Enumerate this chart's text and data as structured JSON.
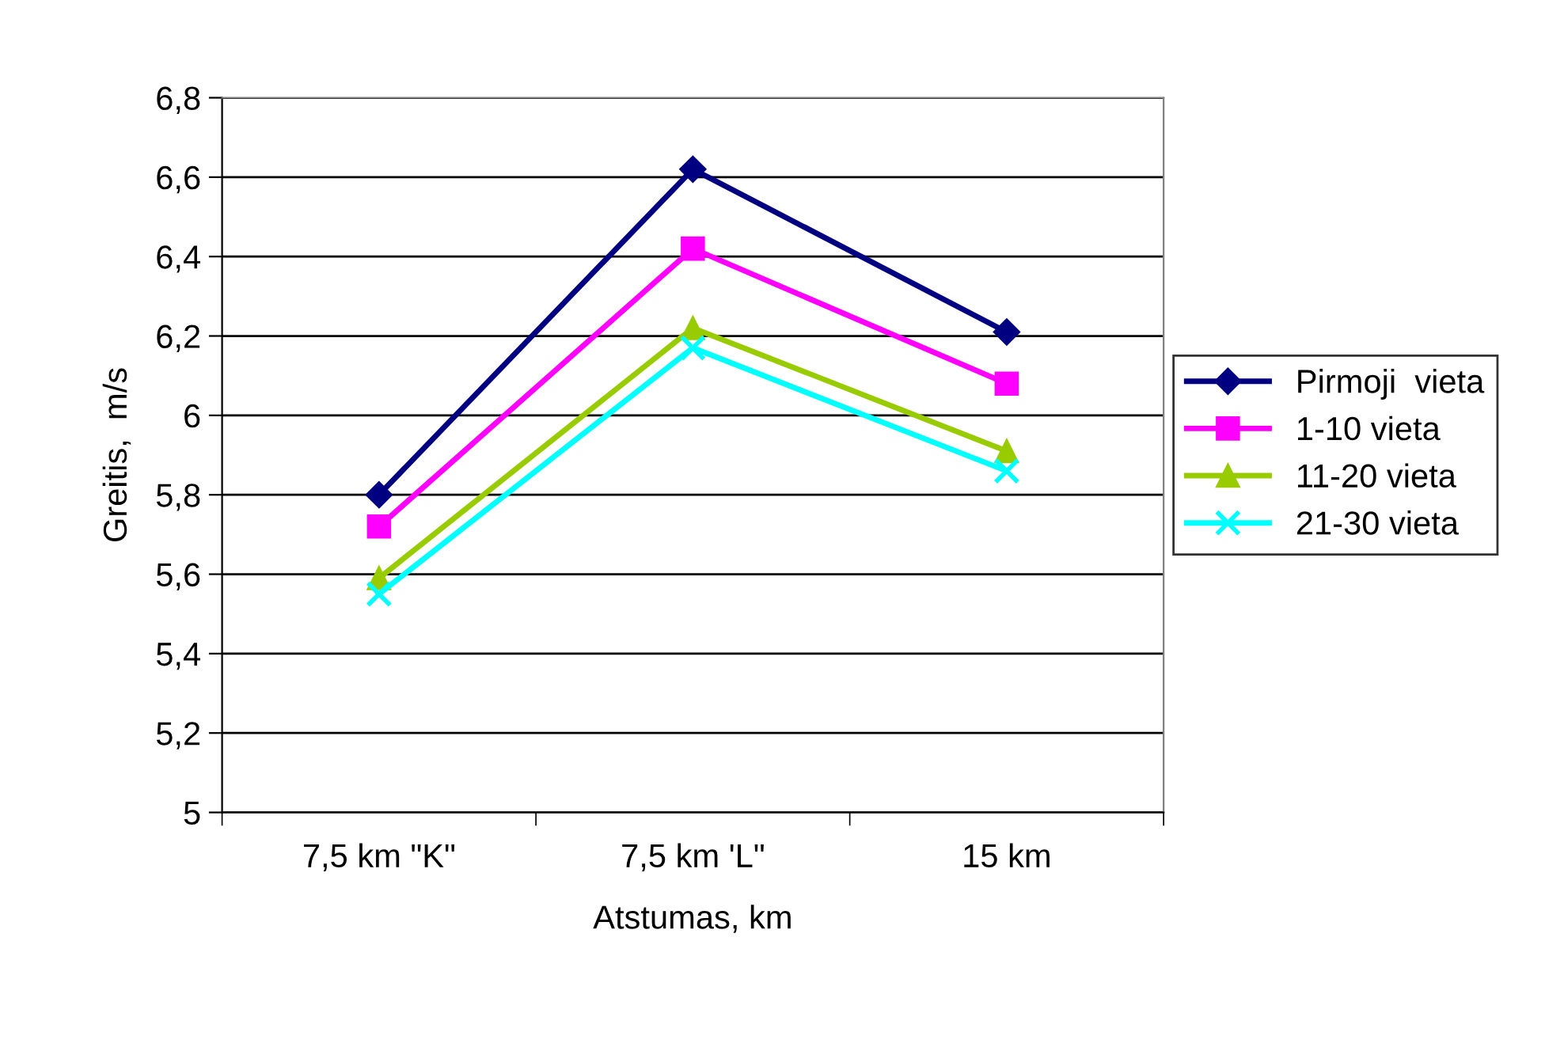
{
  "chart_data": {
    "type": "line",
    "xlabel": "Atstumas, km",
    "ylabel": "Greitis,  m/s",
    "categories": [
      "7,5 km \"K\"",
      "7,5 km 'L\"",
      "15 km"
    ],
    "series": [
      {
        "name": "Pirmoji  vieta",
        "color": "#000080",
        "marker": "diamond",
        "values": [
          5.8,
          6.62,
          6.21
        ]
      },
      {
        "name": "1-10 vieta",
        "color": "#ff00ff",
        "marker": "square",
        "values": [
          5.72,
          6.42,
          6.08
        ]
      },
      {
        "name": "11-20 vieta",
        "color": "#99cc00",
        "marker": "triangle",
        "values": [
          5.59,
          6.22,
          5.91
        ]
      },
      {
        "name": "21-30 vieta",
        "color": "#00ffff",
        "marker": "cross",
        "values": [
          5.55,
          6.17,
          5.86
        ]
      }
    ],
    "ylim": [
      5,
      6.8
    ],
    "yticks": [
      {
        "value": 5,
        "label": "5"
      },
      {
        "value": 5.2,
        "label": "5,2"
      },
      {
        "value": 5.4,
        "label": "5,4"
      },
      {
        "value": 5.6,
        "label": "5,6"
      },
      {
        "value": 5.8,
        "label": "5,8"
      },
      {
        "value": 6,
        "label": "6"
      },
      {
        "value": 6.2,
        "label": "6,2"
      },
      {
        "value": 6.4,
        "label": "6,4"
      },
      {
        "value": 6.6,
        "label": "6,6"
      },
      {
        "value": 6.8,
        "label": "6,8"
      }
    ],
    "grid": "y",
    "legend": "right",
    "line_style": "solid"
  }
}
